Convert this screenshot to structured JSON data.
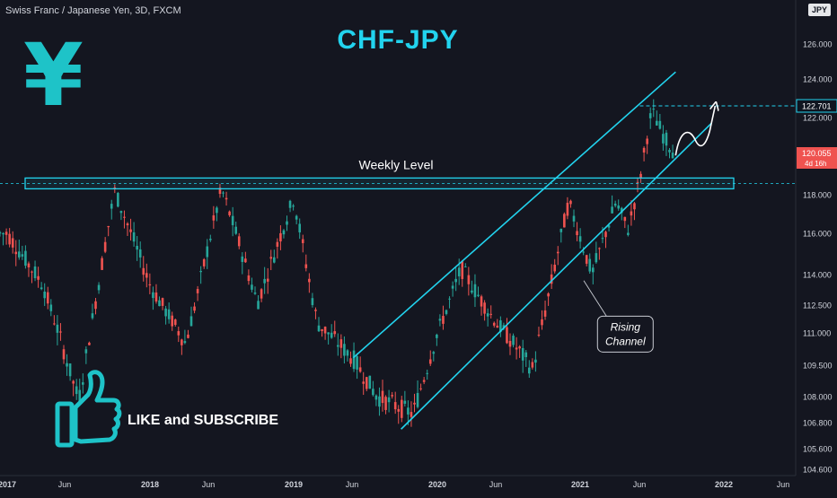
{
  "header": {
    "symbol": "Swiss Franc / Japanese Yen, 3D, FXCM",
    "title": "CHF-JPY",
    "currency_badge": "JPY"
  },
  "branding": {
    "yen_symbol": "¥",
    "cta": "LIKE and SUBSCRIBE",
    "thumb_icon": "thumbs-up-icon"
  },
  "colors": {
    "background": "#141620",
    "accent": "#22d3ee",
    "up_candle": "#26a69a",
    "down_candle": "#ef5350"
  },
  "chart_data": {
    "type": "candlestick",
    "title": "CHF-JPY",
    "x_ticks": [
      "2017",
      "Jun",
      "2018",
      "Jun",
      "2019",
      "Jun",
      "2020",
      "Jun",
      "2021",
      "Jun",
      "2022",
      "Jun"
    ],
    "y_ticks": [
      "126.000",
      "124.000",
      "122.000",
      "118.000",
      "116.000",
      "114.000",
      "112.500",
      "111.000",
      "109.500",
      "108.000",
      "106.800",
      "105.600",
      "104.600"
    ],
    "price_labels": {
      "target": "122.701",
      "last": "120.055",
      "countdown": "4d 16h"
    },
    "path_points": [
      [
        "2017-01",
        116.0
      ],
      [
        "2017-04",
        113.5
      ],
      [
        "2017-07",
        107.8
      ],
      [
        "2017-10",
        118.2
      ],
      [
        "2018-01",
        113.5
      ],
      [
        "2018-04",
        110.5
      ],
      [
        "2018-07",
        118.3
      ],
      [
        "2018-10",
        112.6
      ],
      [
        "2019-01",
        117.8
      ],
      [
        "2019-03",
        111.5
      ],
      [
        "2019-06",
        109.8
      ],
      [
        "2019-08",
        108.0
      ],
      [
        "2019-11",
        107.2
      ],
      [
        "2020-01",
        111.0
      ],
      [
        "2020-03",
        114.3
      ],
      [
        "2020-06",
        111.5
      ],
      [
        "2020-09",
        109.3
      ],
      [
        "2020-12",
        117.6
      ],
      [
        "2021-02",
        114.0
      ],
      [
        "2021-04",
        117.6
      ],
      [
        "2021-05",
        116.2
      ],
      [
        "2021-06",
        118.8
      ],
      [
        "2021-07",
        122.4
      ],
      [
        "2021-08",
        121.0
      ],
      [
        "2021-09",
        120.05
      ]
    ],
    "annotations": {
      "level_label": "Weekly Level",
      "channel_label": [
        "Rising",
        "Channel"
      ]
    }
  }
}
